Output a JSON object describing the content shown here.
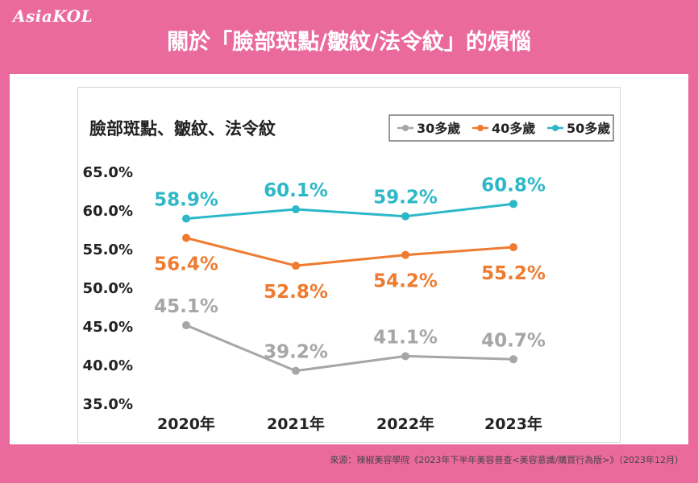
{
  "brand": {
    "logo_text": "AsiaKOL"
  },
  "header": {
    "title": "關於「臉部斑點/皺紋/法令紋」的煩惱"
  },
  "source_note": "來源：辣椒美容學院《2023年下半年美容普查<美容意識/購買行為版>》（2023年12月）",
  "colors": {
    "background": "#eb6a9e",
    "series_30": "#a6a6a6",
    "series_40": "#ee7b30",
    "series_50": "#2db8c8"
  },
  "chart_data": {
    "type": "line",
    "title": "臉部斑點、皺紋、法令紋",
    "xlabel": "",
    "ylabel": "",
    "categories": [
      "2020年",
      "2021年",
      "2022年",
      "2023年"
    ],
    "ylim": [
      35.0,
      65.0
    ],
    "yticks": [
      "65.0%",
      "60.0%",
      "55.0%",
      "50.0%",
      "45.0%",
      "40.0%",
      "35.0%"
    ],
    "ytick_values": [
      65,
      60,
      55,
      50,
      45,
      40,
      35
    ],
    "grid": false,
    "legend_position": "top-right",
    "series": [
      {
        "name": "30多歲",
        "values": [
          45.1,
          39.2,
          41.1,
          40.7
        ],
        "labels": [
          "45.1%",
          "39.2%",
          "41.1%",
          "40.7%"
        ],
        "color": "#a6a6a6",
        "label_pos": [
          "above",
          "above",
          "above",
          "above"
        ]
      },
      {
        "name": "40多歲",
        "values": [
          56.4,
          52.8,
          54.2,
          55.2
        ],
        "labels": [
          "56.4%",
          "52.8%",
          "54.2%",
          "55.2%"
        ],
        "color": "#ee7b30",
        "label_pos": [
          "below",
          "below",
          "below",
          "below"
        ]
      },
      {
        "name": "50多歲",
        "values": [
          58.9,
          60.1,
          59.2,
          60.8
        ],
        "labels": [
          "58.9%",
          "60.1%",
          "59.2%",
          "60.8%"
        ],
        "color": "#2db8c8",
        "label_pos": [
          "above",
          "above",
          "above",
          "above"
        ]
      }
    ]
  }
}
